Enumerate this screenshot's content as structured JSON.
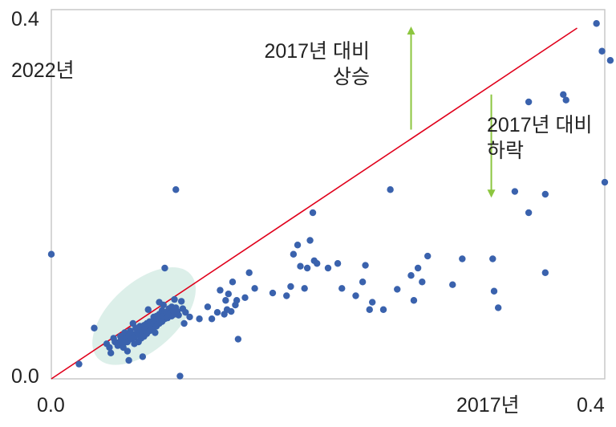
{
  "chart_data": {
    "type": "scatter",
    "title": "",
    "xlabel": "2017년",
    "ylabel": "2022년",
    "xlim": [
      0.0,
      0.4
    ],
    "ylim": [
      0.0,
      0.4
    ],
    "x_tick_labels": [
      "0.0",
      "0.4"
    ],
    "y_tick_labels": [
      "0.0",
      "0.4"
    ],
    "grid": false,
    "reference_line": {
      "from": [
        0.0,
        0.0
      ],
      "to": [
        0.38,
        0.38
      ],
      "color": "#e0001b"
    },
    "annotations": [
      {
        "lines": [
          "2017년 대비",
          "상승"
        ],
        "arrow": "up",
        "x": 0.26,
        "y_from": 0.27,
        "y_to": 0.38
      },
      {
        "lines": [
          "2017년 대비",
          "하락"
        ],
        "arrow": "down",
        "x": 0.318,
        "y_from": 0.308,
        "y_to": 0.198
      }
    ],
    "cluster_highlight": {
      "center": [
        0.067,
        0.068
      ],
      "color": "#dcefe9"
    },
    "colors": {
      "points": "#3a62ad",
      "line": "#e0001b",
      "arrow": "#8cc63f",
      "highlight": "#dcefe9",
      "axis": "#c8c8c8"
    },
    "points": [
      [
        0.0,
        0.135
      ],
      [
        0.02,
        0.016
      ],
      [
        0.031,
        0.055
      ],
      [
        0.04,
        0.038
      ],
      [
        0.042,
        0.034
      ],
      [
        0.043,
        0.028
      ],
      [
        0.045,
        0.044
      ],
      [
        0.046,
        0.04
      ],
      [
        0.048,
        0.036
      ],
      [
        0.05,
        0.046
      ],
      [
        0.05,
        0.041
      ],
      [
        0.052,
        0.038
      ],
      [
        0.053,
        0.05
      ],
      [
        0.054,
        0.044
      ],
      [
        0.055,
        0.04
      ],
      [
        0.055,
        0.03
      ],
      [
        0.056,
        0.047
      ],
      [
        0.057,
        0.052
      ],
      [
        0.058,
        0.049
      ],
      [
        0.058,
        0.043
      ],
      [
        0.059,
        0.06
      ],
      [
        0.06,
        0.045
      ],
      [
        0.06,
        0.038
      ],
      [
        0.061,
        0.055
      ],
      [
        0.062,
        0.05
      ],
      [
        0.063,
        0.047
      ],
      [
        0.063,
        0.04
      ],
      [
        0.064,
        0.057
      ],
      [
        0.065,
        0.052
      ],
      [
        0.065,
        0.044
      ],
      [
        0.066,
        0.05
      ],
      [
        0.067,
        0.046
      ],
      [
        0.067,
        0.058
      ],
      [
        0.068,
        0.054
      ],
      [
        0.069,
        0.06
      ],
      [
        0.069,
        0.049
      ],
      [
        0.07,
        0.056
      ],
      [
        0.071,
        0.062
      ],
      [
        0.071,
        0.052
      ],
      [
        0.072,
        0.058
      ],
      [
        0.073,
        0.054
      ],
      [
        0.074,
        0.067
      ],
      [
        0.074,
        0.06
      ],
      [
        0.075,
        0.063
      ],
      [
        0.075,
        0.05
      ],
      [
        0.076,
        0.068
      ],
      [
        0.076,
        0.057
      ],
      [
        0.077,
        0.064
      ],
      [
        0.078,
        0.06
      ],
      [
        0.078,
        0.07
      ],
      [
        0.079,
        0.066
      ],
      [
        0.08,
        0.062
      ],
      [
        0.08,
        0.074
      ],
      [
        0.081,
        0.068
      ],
      [
        0.082,
        0.065
      ],
      [
        0.082,
        0.072
      ],
      [
        0.083,
        0.069
      ],
      [
        0.084,
        0.073
      ],
      [
        0.084,
        0.066
      ],
      [
        0.085,
        0.076
      ],
      [
        0.086,
        0.071
      ],
      [
        0.087,
        0.068
      ],
      [
        0.087,
        0.078
      ],
      [
        0.088,
        0.074
      ],
      [
        0.089,
        0.07
      ],
      [
        0.09,
        0.077
      ],
      [
        0.091,
        0.073
      ],
      [
        0.092,
        0.069
      ],
      [
        0.095,
        0.076
      ],
      [
        0.097,
        0.072
      ],
      [
        0.056,
        0.02
      ],
      [
        0.066,
        0.024
      ],
      [
        0.052,
        0.034
      ],
      [
        0.07,
        0.075
      ],
      [
        0.081,
        0.08
      ],
      [
        0.094,
        0.084
      ],
      [
        0.089,
        0.086
      ],
      [
        0.078,
        0.083
      ],
      [
        0.082,
        0.12
      ],
      [
        0.09,
        0.205
      ],
      [
        0.093,
        0.003
      ],
      [
        0.096,
        0.06
      ],
      [
        0.1,
        0.067
      ],
      [
        0.107,
        0.065
      ],
      [
        0.113,
        0.078
      ],
      [
        0.116,
        0.065
      ],
      [
        0.12,
        0.072
      ],
      [
        0.122,
        0.096
      ],
      [
        0.126,
        0.085
      ],
      [
        0.125,
        0.07
      ],
      [
        0.127,
        0.075
      ],
      [
        0.128,
        0.092
      ],
      [
        0.13,
        0.073
      ],
      [
        0.131,
        0.105
      ],
      [
        0.133,
        0.08
      ],
      [
        0.134,
        0.085
      ],
      [
        0.135,
        0.043
      ],
      [
        0.14,
        0.088
      ],
      [
        0.143,
        0.115
      ],
      [
        0.147,
        0.098
      ],
      [
        0.16,
        0.093
      ],
      [
        0.17,
        0.09
      ],
      [
        0.173,
        0.1
      ],
      [
        0.175,
        0.135
      ],
      [
        0.178,
        0.145
      ],
      [
        0.18,
        0.122
      ],
      [
        0.183,
        0.098
      ],
      [
        0.185,
        0.12
      ],
      [
        0.187,
        0.15
      ],
      [
        0.189,
        0.18
      ],
      [
        0.19,
        0.128
      ],
      [
        0.192,
        0.125
      ],
      [
        0.2,
        0.12
      ],
      [
        0.207,
        0.125
      ],
      [
        0.21,
        0.098
      ],
      [
        0.22,
        0.09
      ],
      [
        0.225,
        0.105
      ],
      [
        0.227,
        0.123
      ],
      [
        0.23,
        0.075
      ],
      [
        0.232,
        0.083
      ],
      [
        0.24,
        0.075
      ],
      [
        0.245,
        0.205
      ],
      [
        0.25,
        0.097
      ],
      [
        0.262,
        0.085
      ],
      [
        0.26,
        0.112
      ],
      [
        0.265,
        0.12
      ],
      [
        0.268,
        0.105
      ],
      [
        0.272,
        0.133
      ],
      [
        0.29,
        0.102
      ],
      [
        0.297,
        0.13
      ],
      [
        0.319,
        0.13
      ],
      [
        0.323,
        0.077
      ],
      [
        0.32,
        0.095
      ],
      [
        0.335,
        0.203
      ],
      [
        0.345,
        0.18
      ],
      [
        0.357,
        0.115
      ],
      [
        0.37,
        0.308
      ],
      [
        0.372,
        0.302
      ],
      [
        0.394,
        0.385
      ],
      [
        0.398,
        0.355
      ],
      [
        0.404,
        0.345
      ],
      [
        0.4,
        0.213
      ],
      [
        0.357,
        0.2
      ],
      [
        0.345,
        0.3
      ]
    ]
  }
}
